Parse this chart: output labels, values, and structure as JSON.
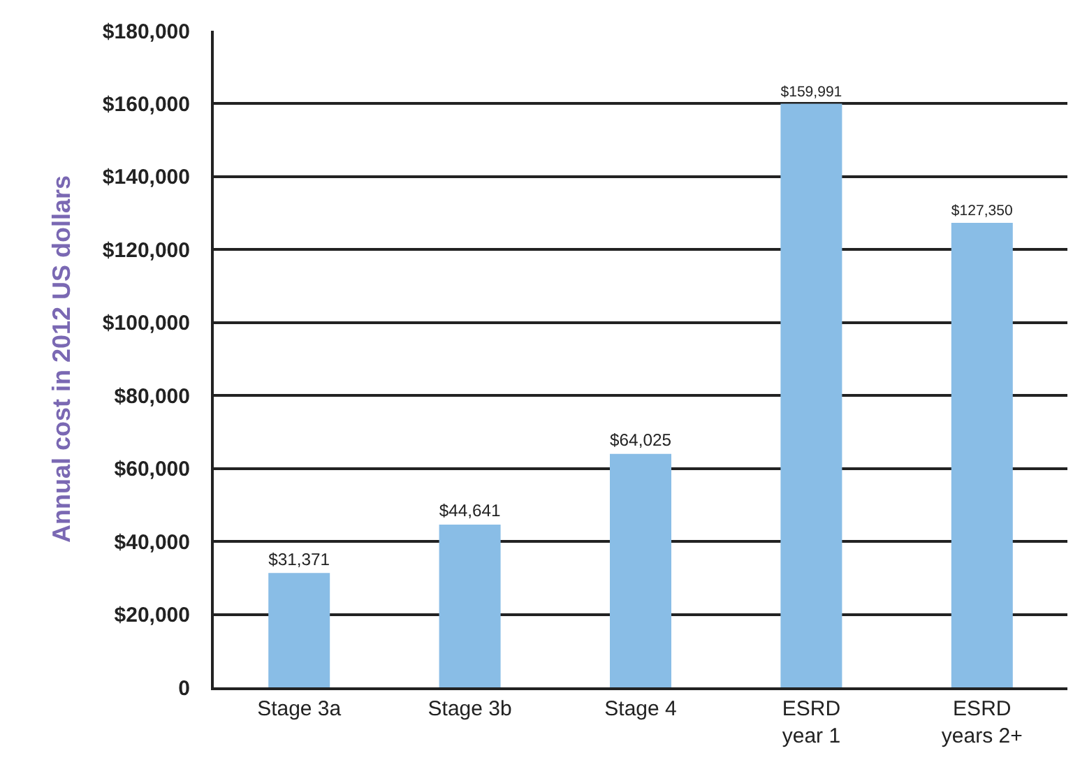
{
  "chart_data": {
    "type": "bar",
    "ylabel": "Annual cost in 2012 US dollars",
    "categories": [
      "Stage 3a",
      "Stage 3b",
      "Stage 4",
      "ESRD\nyear 1",
      "ESRD\nyears 2+"
    ],
    "values": [
      31371,
      44641,
      64025,
      159991,
      127350
    ],
    "value_labels": [
      "$31,371",
      "$44,641",
      "$64,025",
      "$159,991",
      "$127,350"
    ],
    "color": "#89bde6",
    "ylim": [
      0,
      180000
    ],
    "yticks": [
      0,
      {
        "value": 20000,
        "label": "$20,000"
      },
      {
        "value": 40000,
        "label": "$40,000"
      },
      {
        "value": 60000,
        "label": "$60,000"
      },
      {
        "value": 80000,
        "label": "$80,000"
      },
      {
        "value": 100000,
        "label": "$100,000"
      },
      {
        "value": 120000,
        "label": "$120,000"
      },
      {
        "value": 140000,
        "label": "$140,000"
      },
      {
        "value": 160000,
        "label": "$160,000"
      },
      {
        "value": 180000,
        "label": "$180,000"
      }
    ],
    "grid": "y"
  }
}
